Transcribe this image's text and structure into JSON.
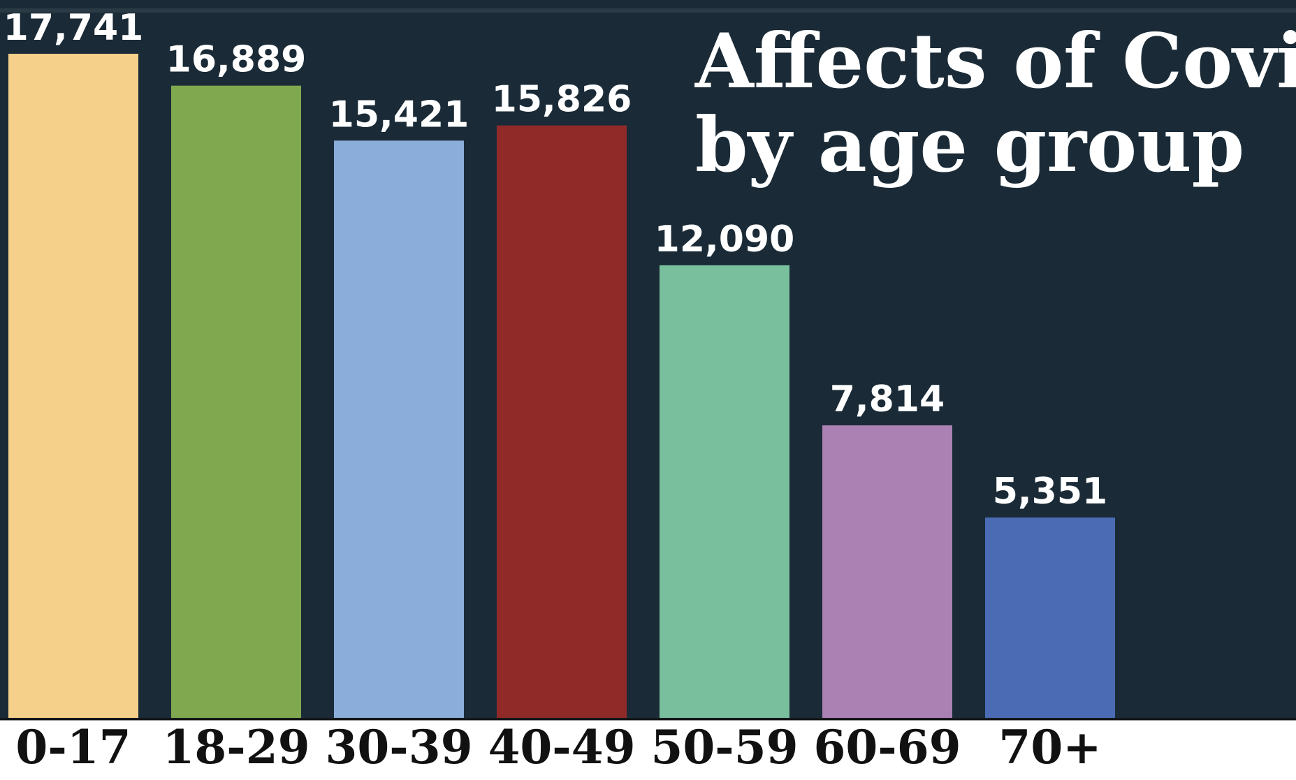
{
  "chart_data": {
    "type": "bar",
    "title_lines": [
      "Affects of Covid",
      "by age group"
    ],
    "categories": [
      "0-17",
      "18-29",
      "30-39",
      "40-49",
      "50-59",
      "60-69",
      "70+"
    ],
    "values": [
      17741,
      16889,
      15421,
      15826,
      12090,
      7814,
      5351
    ],
    "value_labels": [
      "17,741",
      "16,889",
      "15,421",
      "15,826",
      "12,090",
      "7,814",
      "5,351"
    ],
    "bar_colors": [
      "#f5d08a",
      "#80a84e",
      "#8badda",
      "#902a29",
      "#79bf9e",
      "#ab81b4",
      "#4b6cb4"
    ],
    "ylim": [
      0,
      18000
    ],
    "xlabel": "",
    "ylabel": "",
    "grid": false,
    "legend": "none",
    "background_color": "#1a2b37",
    "title_color": "#ffffff",
    "value_label_color": "#ffffff",
    "tick_label_color": "#111111"
  }
}
